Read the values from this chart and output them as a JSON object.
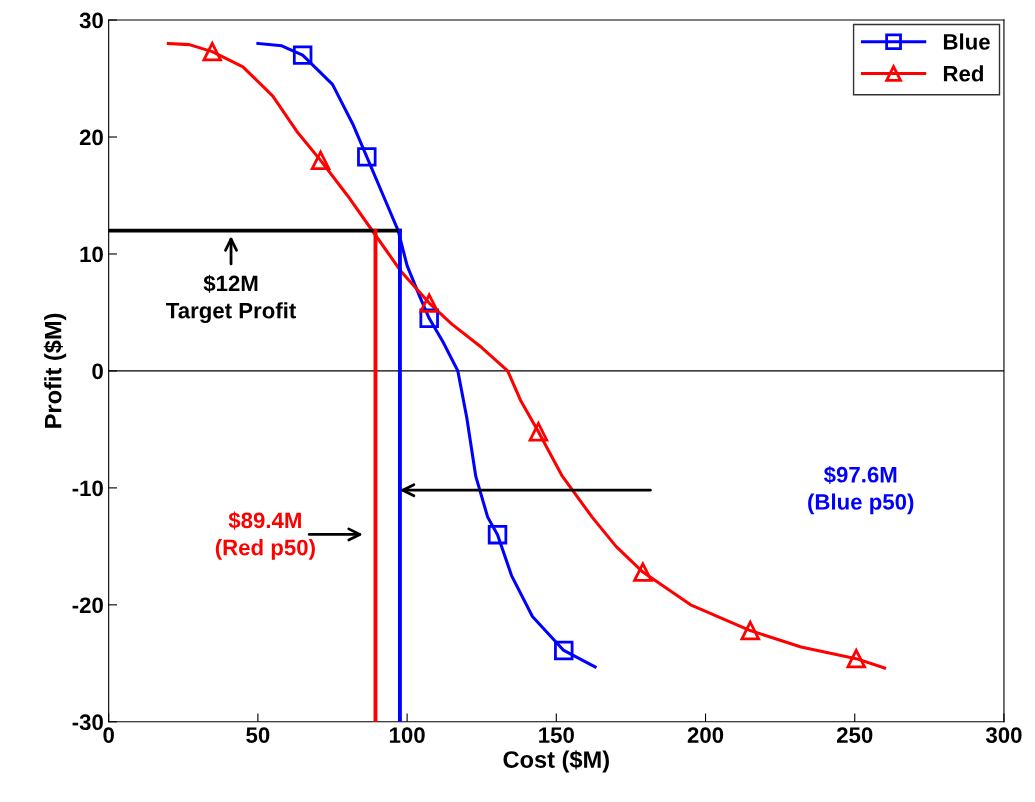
{
  "chart_data": {
    "type": "line",
    "xlabel": "Cost ($M)",
    "ylabel": "Profit ($M)",
    "xlim": [
      0,
      300
    ],
    "xticks": [
      0,
      50,
      100,
      150,
      200,
      250,
      300
    ],
    "ylim": [
      -30,
      30
    ],
    "yticks": [
      -30,
      -20,
      -10,
      0,
      10,
      20,
      30
    ],
    "grid": false,
    "legend": "top right",
    "series": [
      {
        "name": "Blue",
        "color": "#0000ff",
        "x": [
          50,
          58,
          65,
          75,
          82,
          86.5,
          92,
          97,
          100,
          104,
          107.4,
          112,
          117,
          120,
          123,
          127,
          130.3,
          135,
          142,
          152.5,
          163
        ],
        "values": [
          28,
          27.8,
          27,
          24.5,
          21,
          18.3,
          15,
          12,
          9,
          6.5,
          4.5,
          2.5,
          0,
          -4,
          -9,
          -12.5,
          -14,
          -17.5,
          -21,
          -23.9,
          -25.3
        ]
      },
      {
        "name": "Red",
        "color": "#ff0000",
        "x": [
          20,
          27,
          34.7,
          45,
          55,
          63,
          71,
          80,
          88.6,
          98,
          107.4,
          115,
          125,
          133.7,
          138,
          144,
          152,
          162,
          170,
          179,
          195,
          215,
          232,
          250.5,
          260
        ],
        "values": [
          28,
          27.9,
          27.3,
          26,
          23.5,
          20.5,
          18,
          15,
          11.9,
          8.5,
          5.8,
          4,
          2,
          0,
          -2.5,
          -5.2,
          -9,
          -12.5,
          -15,
          -17.2,
          -20,
          -22.2,
          -23.6,
          -24.6,
          -25.4
        ]
      },
      {
        "type": "scatter",
        "color": "#0000ff",
        "marker": "square",
        "x": [
          65,
          86.5,
          107.4,
          130.3,
          152.5
        ],
        "values": [
          27,
          18.3,
          4.5,
          -14,
          -23.9
        ]
      },
      {
        "type": "scatter",
        "color": "#ff0000",
        "marker": "triangle",
        "x": [
          34.7,
          71,
          107.4,
          144,
          179,
          215,
          250.5
        ],
        "values": [
          27.3,
          18,
          5.8,
          -5.2,
          -17.2,
          -22.2,
          -24.6
        ]
      },
      {
        "color": "#000000",
        "x": [
          0,
          97.6
        ],
        "values": [
          12,
          12
        ]
      },
      {
        "color": "#ff0000",
        "x": [
          89.4,
          89.4
        ],
        "values": [
          -30,
          12
        ]
      },
      {
        "color": "#0000ff",
        "x": [
          97.6,
          97.6
        ],
        "values": [
          -30,
          12
        ]
      }
    ],
    "ref_lines": [
      {
        "axis": "y",
        "value": 0,
        "color": "#000000"
      }
    ],
    "annotations": [
      {
        "text": "$12M\nTarget Profit",
        "x": 41,
        "y": 12
      },
      "$97.6M\n(Blue p50)",
      "$89.4M\n(Red p50)"
    ]
  }
}
